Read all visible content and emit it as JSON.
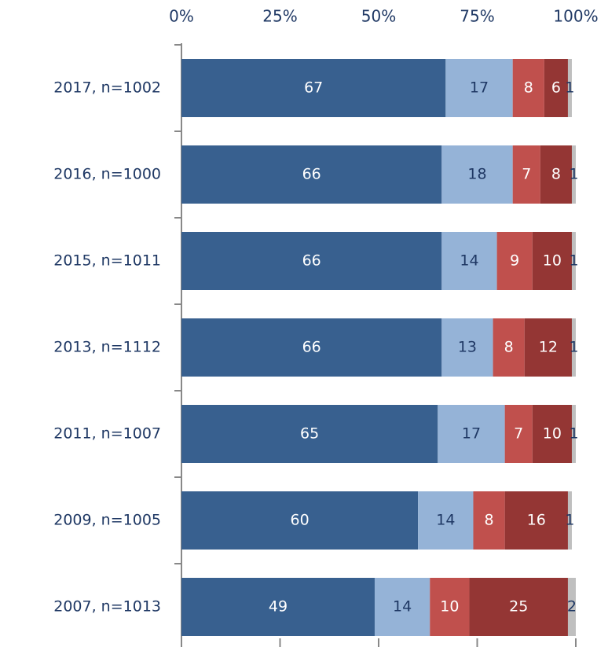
{
  "chart_data": {
    "type": "stacked-bar-horizontal",
    "categories": [
      "2017,  n=1002",
      "2016,  n=1000",
      "2015,  n=1011",
      "2013,  n=1112",
      "2011,  n=1007",
      "2009,  n=1005",
      "2007,  n=1013"
    ],
    "series": [
      {
        "color": "#38608f",
        "values": [
          67,
          66,
          66,
          66,
          65,
          60,
          49
        ]
      },
      {
        "color": "#95b3d7",
        "values": [
          17,
          18,
          14,
          13,
          17,
          14,
          14
        ]
      },
      {
        "color": "#c0504d",
        "values": [
          8,
          7,
          9,
          8,
          7,
          8,
          10
        ]
      },
      {
        "color": "#943634",
        "values": [
          6,
          8,
          10,
          12,
          10,
          16,
          25
        ]
      },
      {
        "color": "#bfbfbf",
        "values": [
          1,
          1,
          1,
          1,
          1,
          1,
          2
        ]
      }
    ],
    "xlim": [
      0,
      100
    ],
    "xticks": [
      {
        "value": 0,
        "label": "0%"
      },
      {
        "value": 25,
        "label": "25%"
      },
      {
        "value": 50,
        "label": "50%"
      },
      {
        "value": 75,
        "label": "75%"
      },
      {
        "value": 100,
        "label": "100%"
      }
    ]
  }
}
